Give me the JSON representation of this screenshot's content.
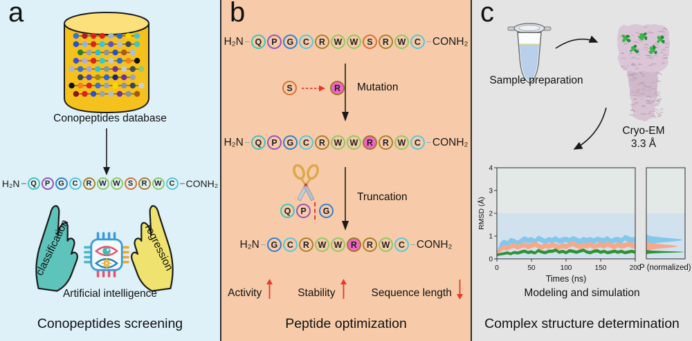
{
  "seq_ends": {
    "prefix": "H₂N",
    "suffix": "CONH₂"
  },
  "aa_colors": {
    "Q": "#3fc4bc",
    "P": "#9253b8",
    "G": "#2f7fd1",
    "C": "#54c8dc",
    "R": "#a87f2a",
    "W": "#8fc863",
    "S": "#d96f2e"
  },
  "highlight": {
    "fill": "#f464cc",
    "border": "#9a7a1f"
  },
  "panels": {
    "a": {
      "letter": "a",
      "db_label": "Conopeptides database",
      "sequence": [
        {
          "l": "Q"
        },
        {
          "l": "P"
        },
        {
          "l": "G"
        },
        {
          "l": "C"
        },
        {
          "l": "R"
        },
        {
          "l": "W"
        },
        {
          "l": "W"
        },
        {
          "l": "S"
        },
        {
          "l": "R"
        },
        {
          "l": "W"
        },
        {
          "l": "C"
        }
      ],
      "hand_left": "classification",
      "hand_right": "regression",
      "ai_label": "Artificial intelligence",
      "title": "Conopeptides screening",
      "db_dot_rows": [
        [
          "#3b6fd4",
          "#b01e28",
          "#e02020",
          "#e02020",
          "#9fb4cc",
          "#2e66d0",
          "#f5d800",
          "#3fc8c8"
        ],
        [
          "#2653cc",
          "#8fb3e8",
          "#e02020",
          "#30c8e0",
          "#5b54c8",
          "#b8bcc8",
          "#3c4858",
          "#40c8b8"
        ],
        [
          "#2e7d32",
          "#9aa4b0",
          "#28c0d8",
          "#8a94a0",
          "#2850c8",
          "#b05818",
          "#a8c0d8"
        ],
        [
          "#3b4fd4",
          "#b8a8e0",
          "#e02020",
          "#38c8d0",
          "#c0c8d4",
          "#2866d0",
          "#f08020",
          "#101010"
        ],
        [
          "#aab8cc",
          "#3b6fd4",
          "#b0a0e0",
          "#38c0d8",
          "#8a94a0",
          "#7030a0",
          "#c0c8d4",
          "#404a58",
          "#90c878"
        ],
        [
          "#3c4858",
          "#5048c8",
          "#a08818",
          "#2866d0",
          "#182878",
          "#7030a0",
          "#9aa4b0"
        ],
        [
          "#101010",
          "#f08020",
          "#e02020",
          "#3b6fd4",
          "#9aa4b0",
          "#f5d800",
          "#8a94a0",
          "#3c4858",
          "#c8d0da"
        ],
        [
          "#8a1620",
          "#e02020",
          "#2653cc",
          "#9aa4b0",
          "#b8bcc8",
          "#7030a0",
          "#8a94a0",
          "#a05818"
        ]
      ]
    },
    "b": {
      "letter": "b",
      "seq1": [
        {
          "l": "Q"
        },
        {
          "l": "P"
        },
        {
          "l": "G"
        },
        {
          "l": "C"
        },
        {
          "l": "R"
        },
        {
          "l": "W"
        },
        {
          "l": "W"
        },
        {
          "l": "S"
        },
        {
          "l": "R"
        },
        {
          "l": "W"
        },
        {
          "l": "C"
        }
      ],
      "mutation_from": "S",
      "mutation_to": "R",
      "mutation_label": "Mutation",
      "seq2": [
        {
          "l": "Q"
        },
        {
          "l": "P"
        },
        {
          "l": "G"
        },
        {
          "l": "C"
        },
        {
          "l": "R"
        },
        {
          "l": "W"
        },
        {
          "l": "W"
        },
        {
          "l": "R",
          "hl": true
        },
        {
          "l": "R"
        },
        {
          "l": "W"
        },
        {
          "l": "C"
        }
      ],
      "truncation_label": "Truncation",
      "truncation_seq": [
        {
          "l": "Q"
        },
        {
          "l": "P"
        },
        {
          "cut": true
        },
        {
          "l": "G"
        }
      ],
      "seq3": [
        {
          "l": "G"
        },
        {
          "l": "C"
        },
        {
          "l": "R"
        },
        {
          "l": "W"
        },
        {
          "l": "W"
        },
        {
          "l": "R",
          "hl": true
        },
        {
          "l": "R"
        },
        {
          "l": "W"
        },
        {
          "l": "C"
        }
      ],
      "metrics": [
        {
          "label": "Activity",
          "dir": "up"
        },
        {
          "label": "Stability",
          "dir": "up"
        },
        {
          "label": "Sequence length",
          "dir": "down"
        }
      ],
      "arrow_color": "#e8372c",
      "title": "Peptide optimization"
    },
    "c": {
      "letter": "c",
      "sample_label": "Sample preparation",
      "cryoem_label": "Cryo-EM",
      "resolution": "3.3 Å",
      "modeling_label": "Modeling and simulation",
      "title": "Complex structure determination"
    }
  },
  "chart_data": {
    "type": "area",
    "xlabel": "Times (ns)",
    "ylabel": "RMSD (Å)",
    "panel2_label": "P (normalized)",
    "xlim": [
      0,
      200
    ],
    "ylim": [
      0,
      4
    ],
    "x_ticks": [
      0,
      50,
      100,
      150,
      200
    ],
    "y_ticks": [
      0,
      1,
      2,
      3,
      4
    ],
    "x_step": 5,
    "grid": false,
    "legend": "none",
    "bg_color": "#e2e9e6",
    "shaded_band": {
      "from": 0,
      "to": 2,
      "color": "#d2e1ee"
    },
    "series": [
      {
        "name": "rmsd-trace-blue",
        "color": "#82c7ec",
        "upper": [
          0.3,
          0.72,
          0.85,
          0.78,
          0.92,
          0.88,
          0.8,
          0.9,
          1.0,
          0.92,
          0.96,
          0.88,
          1.02,
          0.95,
          0.88,
          0.96,
          0.92,
          1.0,
          0.9,
          0.95,
          0.97,
          0.92,
          1.0,
          0.95,
          0.88,
          0.97,
          0.92,
          0.96,
          0.9,
          0.98,
          0.94,
          0.92,
          1.0,
          0.88,
          0.95,
          0.97,
          0.91,
          1.05,
          1.0,
          0.94,
          0.97
        ],
        "lower": [
          0.15,
          0.45,
          0.62,
          0.55,
          0.68,
          0.62,
          0.58,
          0.66,
          0.75,
          0.68,
          0.72,
          0.62,
          0.78,
          0.7,
          0.64,
          0.72,
          0.68,
          0.75,
          0.66,
          0.7,
          0.73,
          0.68,
          0.76,
          0.7,
          0.64,
          0.72,
          0.68,
          0.72,
          0.66,
          0.74,
          0.7,
          0.68,
          0.76,
          0.64,
          0.7,
          0.73,
          0.67,
          0.8,
          0.75,
          0.7,
          0.72
        ]
      },
      {
        "name": "rmsd-trace-salmon",
        "color": "#f5a98a",
        "upper": [
          0.25,
          0.52,
          0.62,
          0.58,
          0.66,
          0.7,
          0.62,
          0.68,
          0.73,
          0.65,
          0.7,
          0.76,
          0.68,
          0.62,
          0.71,
          0.66,
          0.73,
          0.68,
          0.62,
          0.7,
          0.65,
          0.73,
          0.78,
          0.7,
          0.65,
          0.72,
          0.68,
          0.74,
          0.65,
          0.7,
          0.73,
          0.68,
          0.76,
          0.7,
          0.65,
          0.73,
          0.68,
          0.71,
          0.76,
          0.7,
          0.68
        ],
        "lower": [
          0.1,
          0.3,
          0.4,
          0.36,
          0.44,
          0.48,
          0.4,
          0.46,
          0.5,
          0.42,
          0.47,
          0.53,
          0.45,
          0.4,
          0.48,
          0.43,
          0.5,
          0.45,
          0.4,
          0.47,
          0.42,
          0.5,
          0.55,
          0.47,
          0.42,
          0.49,
          0.45,
          0.51,
          0.42,
          0.47,
          0.5,
          0.45,
          0.53,
          0.47,
          0.42,
          0.5,
          0.45,
          0.48,
          0.53,
          0.47,
          0.45
        ]
      },
      {
        "name": "rmsd-trace-green",
        "color": "#2f9232",
        "upper": [
          0.22,
          0.26,
          0.29,
          0.33,
          0.28,
          0.35,
          0.32,
          0.37,
          0.41,
          0.35,
          0.38,
          0.32,
          0.44,
          0.37,
          0.34,
          0.4,
          0.4,
          0.46,
          0.36,
          0.4,
          0.34,
          0.43,
          0.4,
          0.36,
          0.41,
          0.46,
          0.37,
          0.34,
          0.4,
          0.43,
          0.36,
          0.4,
          0.34,
          0.37,
          0.41,
          0.36,
          0.4,
          0.34,
          0.37,
          0.4,
          0.36
        ],
        "lower": [
          0.12,
          0.15,
          0.17,
          0.2,
          0.16,
          0.22,
          0.19,
          0.23,
          0.27,
          0.21,
          0.24,
          0.19,
          0.29,
          0.23,
          0.2,
          0.26,
          0.26,
          0.31,
          0.22,
          0.26,
          0.2,
          0.28,
          0.26,
          0.22,
          0.27,
          0.31,
          0.23,
          0.2,
          0.26,
          0.28,
          0.22,
          0.26,
          0.2,
          0.23,
          0.27,
          0.22,
          0.26,
          0.2,
          0.23,
          0.26,
          0.22
        ]
      }
    ],
    "distributions": [
      {
        "series": "rmsd-trace-blue",
        "color": "#82c7ec",
        "center": 0.83,
        "sigma": 0.12,
        "amp": 0.93
      },
      {
        "series": "rmsd-trace-salmon",
        "color": "#f5a98a",
        "center": 0.55,
        "sigma": 0.11,
        "amp": 0.8
      },
      {
        "series": "rmsd-trace-green",
        "color": "#2f9232",
        "center": 0.3,
        "sigma": 0.045,
        "amp": 0.98
      }
    ]
  }
}
